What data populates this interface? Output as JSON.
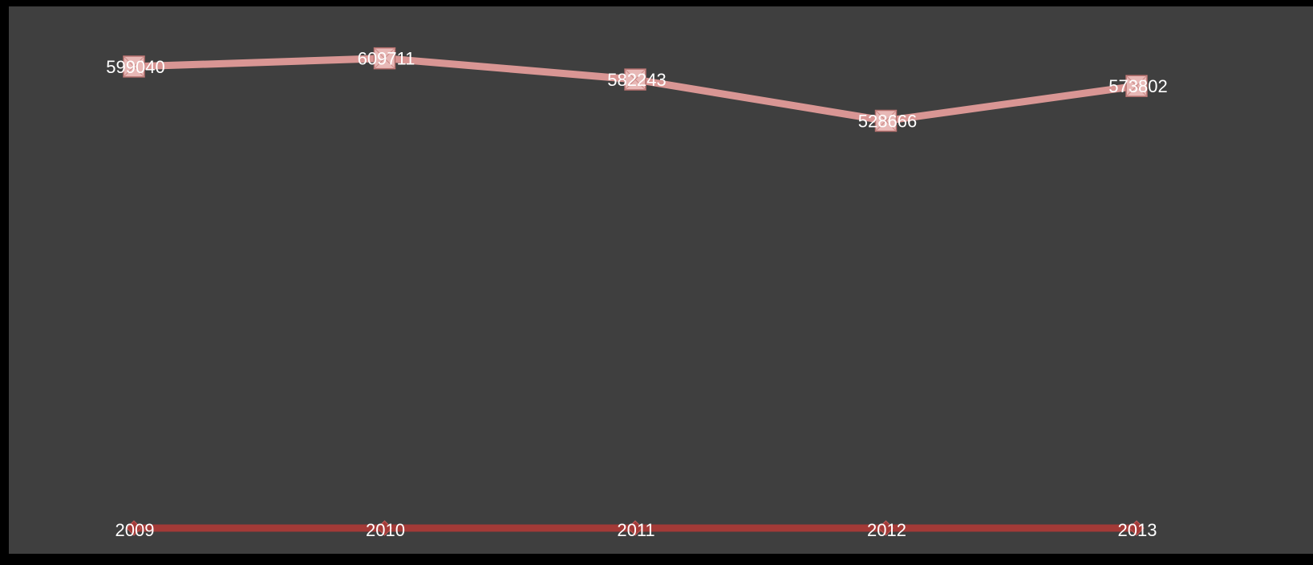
{
  "chart_data": {
    "type": "line",
    "categories": [
      "2009",
      "2010",
      "2011",
      "2012",
      "2013"
    ],
    "series": [
      {
        "values": [
          599040,
          609711,
          582243,
          528666,
          573802
        ],
        "color": "#d99694",
        "marker": "square"
      }
    ],
    "baseline": {
      "color": "#a33a37",
      "marker": "diamond"
    },
    "ylim": [
      0,
      650000
    ],
    "grid": false,
    "legend": "none",
    "data_labels": true,
    "background": "#3f3f3f",
    "frame_color": "#000000"
  }
}
